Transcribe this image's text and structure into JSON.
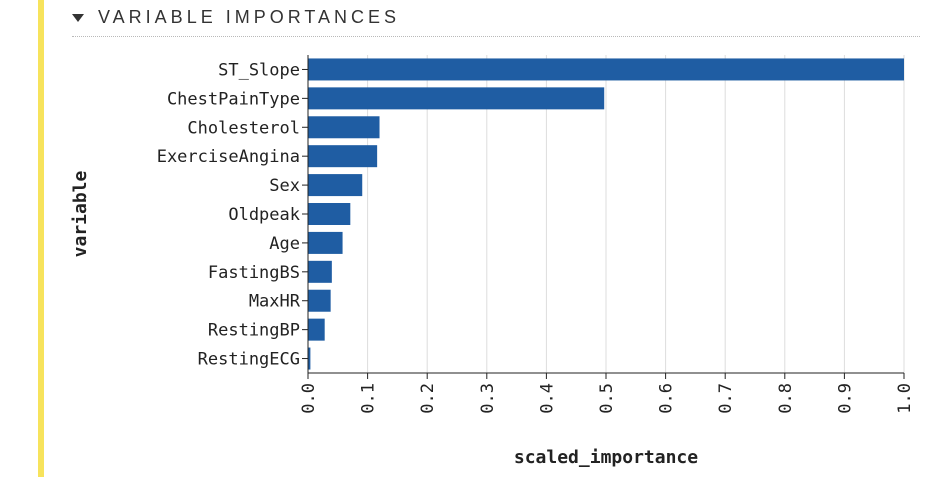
{
  "section": {
    "title": "VARIABLE IMPORTANCES",
    "collapse_icon": "caret-down-icon"
  },
  "colors": {
    "bar": "#1f5da3",
    "accent": "#f7e35c",
    "grid": "#dddddd",
    "text": "#222222"
  },
  "chart_data": {
    "type": "bar",
    "orientation": "horizontal",
    "categories": [
      "ST_Slope",
      "ChestPainType",
      "Cholesterol",
      "ExerciseAngina",
      "Sex",
      "Oldpeak",
      "Age",
      "FastingBS",
      "MaxHR",
      "RestingBP",
      "RestingECG"
    ],
    "values": [
      1.0,
      0.497,
      0.12,
      0.116,
      0.091,
      0.071,
      0.058,
      0.04,
      0.038,
      0.028,
      0.004
    ],
    "xlabel": "scaled_importance",
    "ylabel": "variable",
    "xlim": [
      0,
      1.0
    ],
    "xticks": [
      "0.0",
      "0.1",
      "0.2",
      "0.3",
      "0.4",
      "0.5",
      "0.6",
      "0.7",
      "0.8",
      "0.9",
      "1.0"
    ],
    "grid": true
  }
}
